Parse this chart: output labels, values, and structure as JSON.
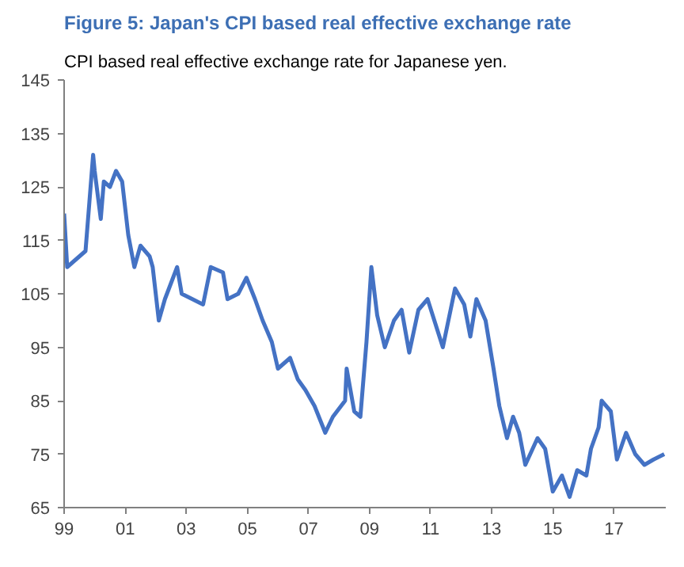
{
  "chart_data": {
    "type": "line",
    "title": "Figure 5: Japan's CPI based real effective exchange rate",
    "subtitle": "CPI based real effective exchange rate for Japanese yen.",
    "x": [
      1999.0,
      1999.1,
      1999.5,
      1999.7,
      1999.95,
      2000.0,
      2000.2,
      2000.3,
      2000.5,
      2000.7,
      2000.9,
      2001.1,
      2001.3,
      2001.5,
      2001.8,
      2001.9,
      2002.1,
      2002.3,
      2002.7,
      2002.85,
      2003.2,
      2003.55,
      2003.8,
      2004.2,
      2004.35,
      2004.7,
      2004.97,
      2005.25,
      2005.5,
      2005.8,
      2006.0,
      2006.4,
      2006.65,
      2006.9,
      2007.2,
      2007.55,
      2007.8,
      2008.2,
      2008.25,
      2008.5,
      2008.7,
      2008.9,
      2009.06,
      2009.25,
      2009.5,
      2009.8,
      2010.05,
      2010.3,
      2010.6,
      2010.9,
      2011.4,
      2011.8,
      2012.1,
      2012.3,
      2012.5,
      2012.8,
      2013.06,
      2013.25,
      2013.5,
      2013.7,
      2013.9,
      2014.1,
      2014.5,
      2014.75,
      2015.0,
      2015.3,
      2015.55,
      2015.8,
      2016.1,
      2016.25,
      2016.5,
      2016.6,
      2016.9,
      2017.1,
      2017.4,
      2017.7,
      2018.0,
      2018.3,
      2018.65
    ],
    "series": [
      {
        "color": "#4472c4",
        "values": [
          120,
          110,
          112,
          113,
          131,
          128,
          119,
          126,
          125,
          128,
          126,
          116,
          110,
          114,
          112,
          110,
          100,
          104,
          110,
          105,
          104,
          103,
          110,
          109,
          104,
          105,
          108,
          104,
          100,
          96,
          91,
          93,
          89,
          87,
          84,
          79,
          82,
          85,
          91,
          83,
          82,
          96,
          110,
          101,
          95,
          100,
          102,
          94,
          102,
          104,
          95,
          106,
          103,
          97,
          104,
          100,
          91,
          84,
          78,
          82,
          79,
          73,
          78,
          76,
          68,
          71,
          67,
          72,
          71,
          76,
          80,
          85,
          83,
          74,
          79,
          75,
          73,
          74,
          75
        ]
      }
    ],
    "xlim": [
      1999,
      2018.7
    ],
    "xticks": [
      {
        "value": 1999,
        "label": "99"
      },
      {
        "value": 2001,
        "label": "01"
      },
      {
        "value": 2003,
        "label": "03"
      },
      {
        "value": 2005,
        "label": "05"
      },
      {
        "value": 2007,
        "label": "07"
      },
      {
        "value": 2009,
        "label": "09"
      },
      {
        "value": 2011,
        "label": "11"
      },
      {
        "value": 2013,
        "label": "13"
      },
      {
        "value": 2015,
        "label": "15"
      },
      {
        "value": 2017,
        "label": "17"
      }
    ],
    "ylim": [
      65,
      145
    ],
    "yticks": [
      65,
      75,
      85,
      95,
      105,
      115,
      125,
      135,
      145
    ],
    "grid": false,
    "marker": "none",
    "line_style": "solid"
  }
}
